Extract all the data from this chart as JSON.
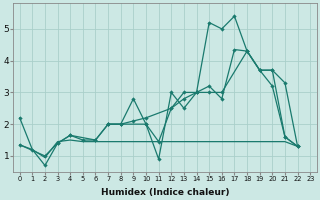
{
  "xlabel": "Humidex (Indice chaleur)",
  "background_color": "#cce8e4",
  "grid_color": "#aacfca",
  "line_color": "#1a7a6e",
  "xlim": [
    -0.5,
    23.5
  ],
  "ylim": [
    0.5,
    5.8
  ],
  "yticks": [
    1,
    2,
    3,
    4,
    5
  ],
  "xticks": [
    0,
    1,
    2,
    3,
    4,
    5,
    6,
    7,
    8,
    9,
    10,
    11,
    12,
    13,
    14,
    15,
    16,
    17,
    18,
    19,
    20,
    21,
    22,
    23
  ],
  "s1_x": [
    0,
    1,
    2,
    3,
    4,
    5,
    6,
    7,
    8,
    9,
    10,
    11,
    12,
    13,
    14,
    15,
    16,
    17,
    18,
    19,
    20,
    21,
    22
  ],
  "s1_y": [
    2.2,
    1.2,
    0.7,
    1.4,
    1.65,
    1.5,
    1.5,
    2.0,
    2.0,
    2.8,
    2.0,
    0.9,
    3.0,
    2.5,
    3.0,
    5.2,
    5.0,
    5.4,
    4.3,
    3.7,
    3.2,
    1.6,
    1.3
  ],
  "s2_x": [
    0,
    1,
    2,
    3,
    4,
    5,
    6,
    7,
    8,
    9,
    10,
    11,
    12,
    13,
    14,
    15,
    16,
    17,
    18,
    19,
    20,
    21,
    22
  ],
  "s2_y": [
    1.35,
    1.2,
    0.95,
    1.45,
    1.5,
    1.45,
    1.45,
    1.45,
    1.45,
    1.45,
    1.45,
    1.45,
    1.45,
    1.45,
    1.45,
    1.45,
    1.45,
    1.45,
    1.45,
    1.45,
    1.45,
    1.45,
    1.3
  ],
  "s3_x": [
    0,
    2,
    3,
    4,
    6,
    7,
    8,
    10,
    11,
    12,
    13,
    14,
    15,
    16,
    18,
    19,
    20,
    21,
    22
  ],
  "s3_y": [
    1.35,
    1.0,
    1.4,
    1.65,
    1.5,
    2.0,
    2.0,
    2.0,
    1.45,
    2.5,
    3.0,
    3.0,
    3.0,
    3.0,
    4.3,
    3.7,
    3.7,
    1.6,
    1.3
  ],
  "s4_x": [
    7,
    8,
    9,
    10,
    12,
    13,
    14,
    15,
    16,
    17,
    18,
    19,
    20,
    21,
    22
  ],
  "s4_y": [
    2.0,
    2.0,
    2.1,
    2.2,
    2.5,
    2.8,
    3.0,
    3.2,
    2.8,
    4.35,
    4.3,
    3.7,
    3.7,
    3.3,
    1.3
  ]
}
